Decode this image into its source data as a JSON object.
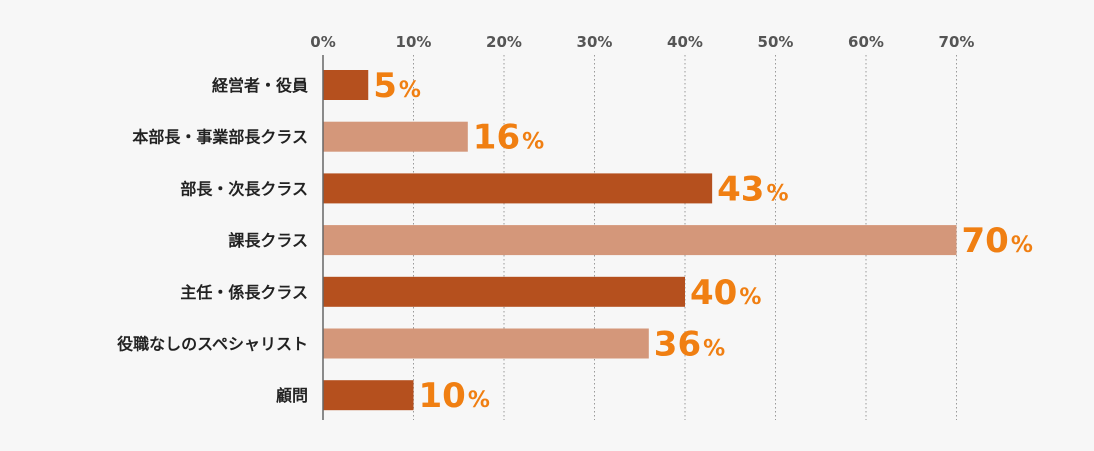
{
  "chart_data": {
    "type": "bar",
    "orientation": "horizontal",
    "categories": [
      "経営者・役員",
      "本部長・事業部長クラス",
      "部長・次長クラス",
      "課長クラス",
      "主任・係長クラス",
      "役職なしのスペシャリスト",
      "顧問"
    ],
    "values": [
      5,
      16,
      43,
      70,
      40,
      36,
      10
    ],
    "value_suffix": "%",
    "xlim": [
      0,
      70
    ],
    "x_ticks": [
      0,
      10,
      20,
      30,
      40,
      50,
      60,
      70
    ],
    "x_tick_labels": [
      "0%",
      "10%",
      "20%",
      "30%",
      "40%",
      "50%",
      "60%",
      "70%"
    ],
    "axis_position": "top",
    "grid": true,
    "legend": "none",
    "bar_colors": [
      "#b5501e",
      "#d4977a",
      "#b5501e",
      "#d4977a",
      "#b5501e",
      "#d4977a",
      "#b5501e"
    ],
    "value_label_color": "#f07f12",
    "title": "",
    "xlabel": "",
    "ylabel": ""
  }
}
